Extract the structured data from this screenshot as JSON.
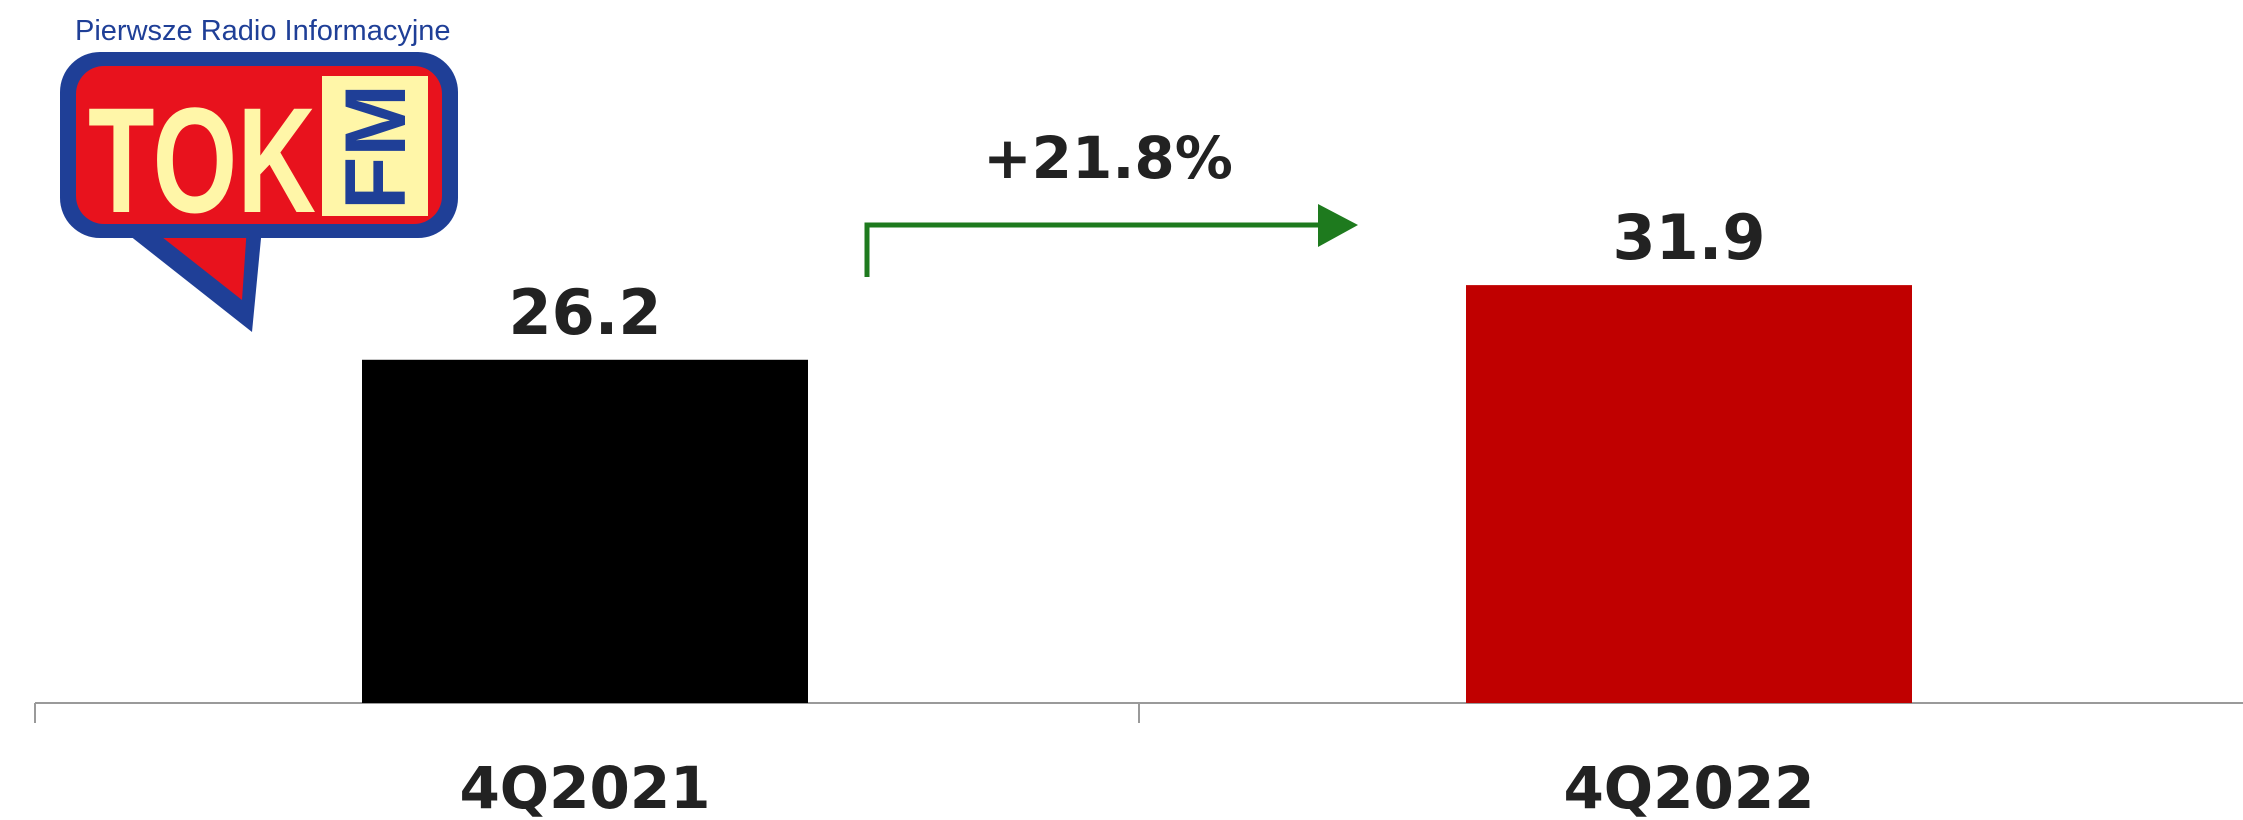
{
  "logo": {
    "tagline": "Pierwsze Radio Informacyjne",
    "brand": "TOK",
    "brand_suffix": "FM",
    "colors": {
      "frame": "#1f3f97",
      "fill": "#e8121d",
      "text": "#fff6a8"
    }
  },
  "chart_data": {
    "type": "bar",
    "categories": [
      "4Q2021",
      "4Q2022"
    ],
    "values": [
      26.2,
      31.9
    ],
    "value_labels": [
      "26.2",
      "31.9"
    ],
    "colors": [
      "#000000",
      "#c00000"
    ],
    "ylim": [
      0,
      35
    ],
    "grid": false,
    "annotation": {
      "text": "+21.8%",
      "arrow_color": "#1e7a1e",
      "from": "4Q2021",
      "to": "4Q2022"
    }
  }
}
